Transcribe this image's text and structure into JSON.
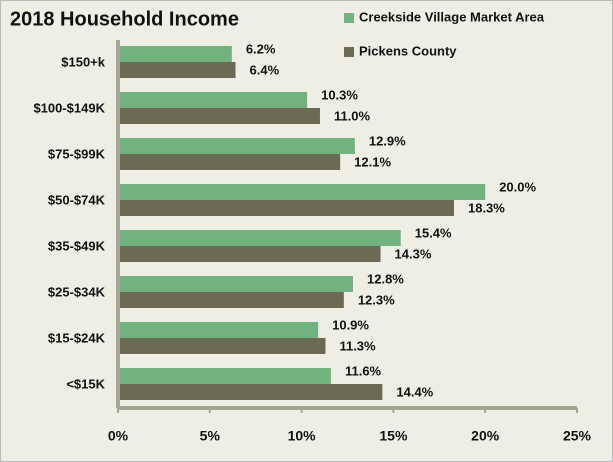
{
  "chart_data": {
    "type": "hbar",
    "title": "2018 Household Income",
    "categories": [
      "$150+k",
      "$100-$149K",
      "$75-$99K",
      "$50-$74K",
      "$35-$49K",
      "$25-$34K",
      "$15-$24K",
      "<$15K"
    ],
    "series": [
      {
        "name": "Creekside Village Market Area",
        "color": "#72b27e",
        "values": [
          6.2,
          10.3,
          12.9,
          20.0,
          15.4,
          12.8,
          10.9,
          11.6
        ],
        "value_labels": [
          "6.2%",
          "10.3%",
          "12.9%",
          "20.0%",
          "15.4%",
          "12.8%",
          "10.9%",
          "11.6%"
        ]
      },
      {
        "name": "Pickens County",
        "color": "#6b6b55",
        "values": [
          6.4,
          11.0,
          12.1,
          18.3,
          14.3,
          12.3,
          11.3,
          14.4
        ],
        "value_labels": [
          "6.4%",
          "11.0%",
          "12.1%",
          "18.3%",
          "14.3%",
          "12.3%",
          "11.3%",
          "14.4%"
        ]
      }
    ],
    "xlim": [
      0,
      25
    ],
    "xticks": [
      {
        "value": 0,
        "label": "0%"
      },
      {
        "value": 5,
        "label": "5%"
      },
      {
        "value": 10,
        "label": "10%"
      },
      {
        "value": 15,
        "label": "15%"
      },
      {
        "value": 20,
        "label": "20%"
      },
      {
        "value": 25,
        "label": "25%"
      }
    ]
  }
}
